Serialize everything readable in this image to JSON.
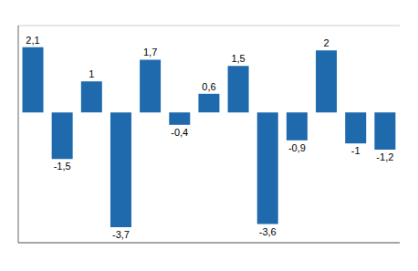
{
  "chart_data": {
    "type": "bar",
    "categories": [
      null,
      null,
      null,
      null,
      null,
      null,
      null,
      null,
      null,
      null,
      null,
      null,
      null
    ],
    "values": [
      2.1,
      -1.5,
      1.0,
      -3.7,
      1.7,
      -0.4,
      0.6,
      1.5,
      -3.6,
      -0.9,
      2.0,
      -1.0,
      -1.2
    ],
    "value_labels": [
      "2,1",
      "-1,5",
      "1",
      "-3,7",
      "1,7",
      "-0,4",
      "0,6",
      "1,5",
      "-3,6",
      "-0,9",
      "2",
      "-1",
      "-1,2"
    ],
    "color": "#1F6AAD",
    "ylim": [
      -4.2,
      2.8
    ],
    "yticks": [
      -4,
      -3,
      -2,
      -1,
      0,
      1,
      2
    ],
    "grid": true,
    "data_labels": true,
    "tick_labels": false
  }
}
